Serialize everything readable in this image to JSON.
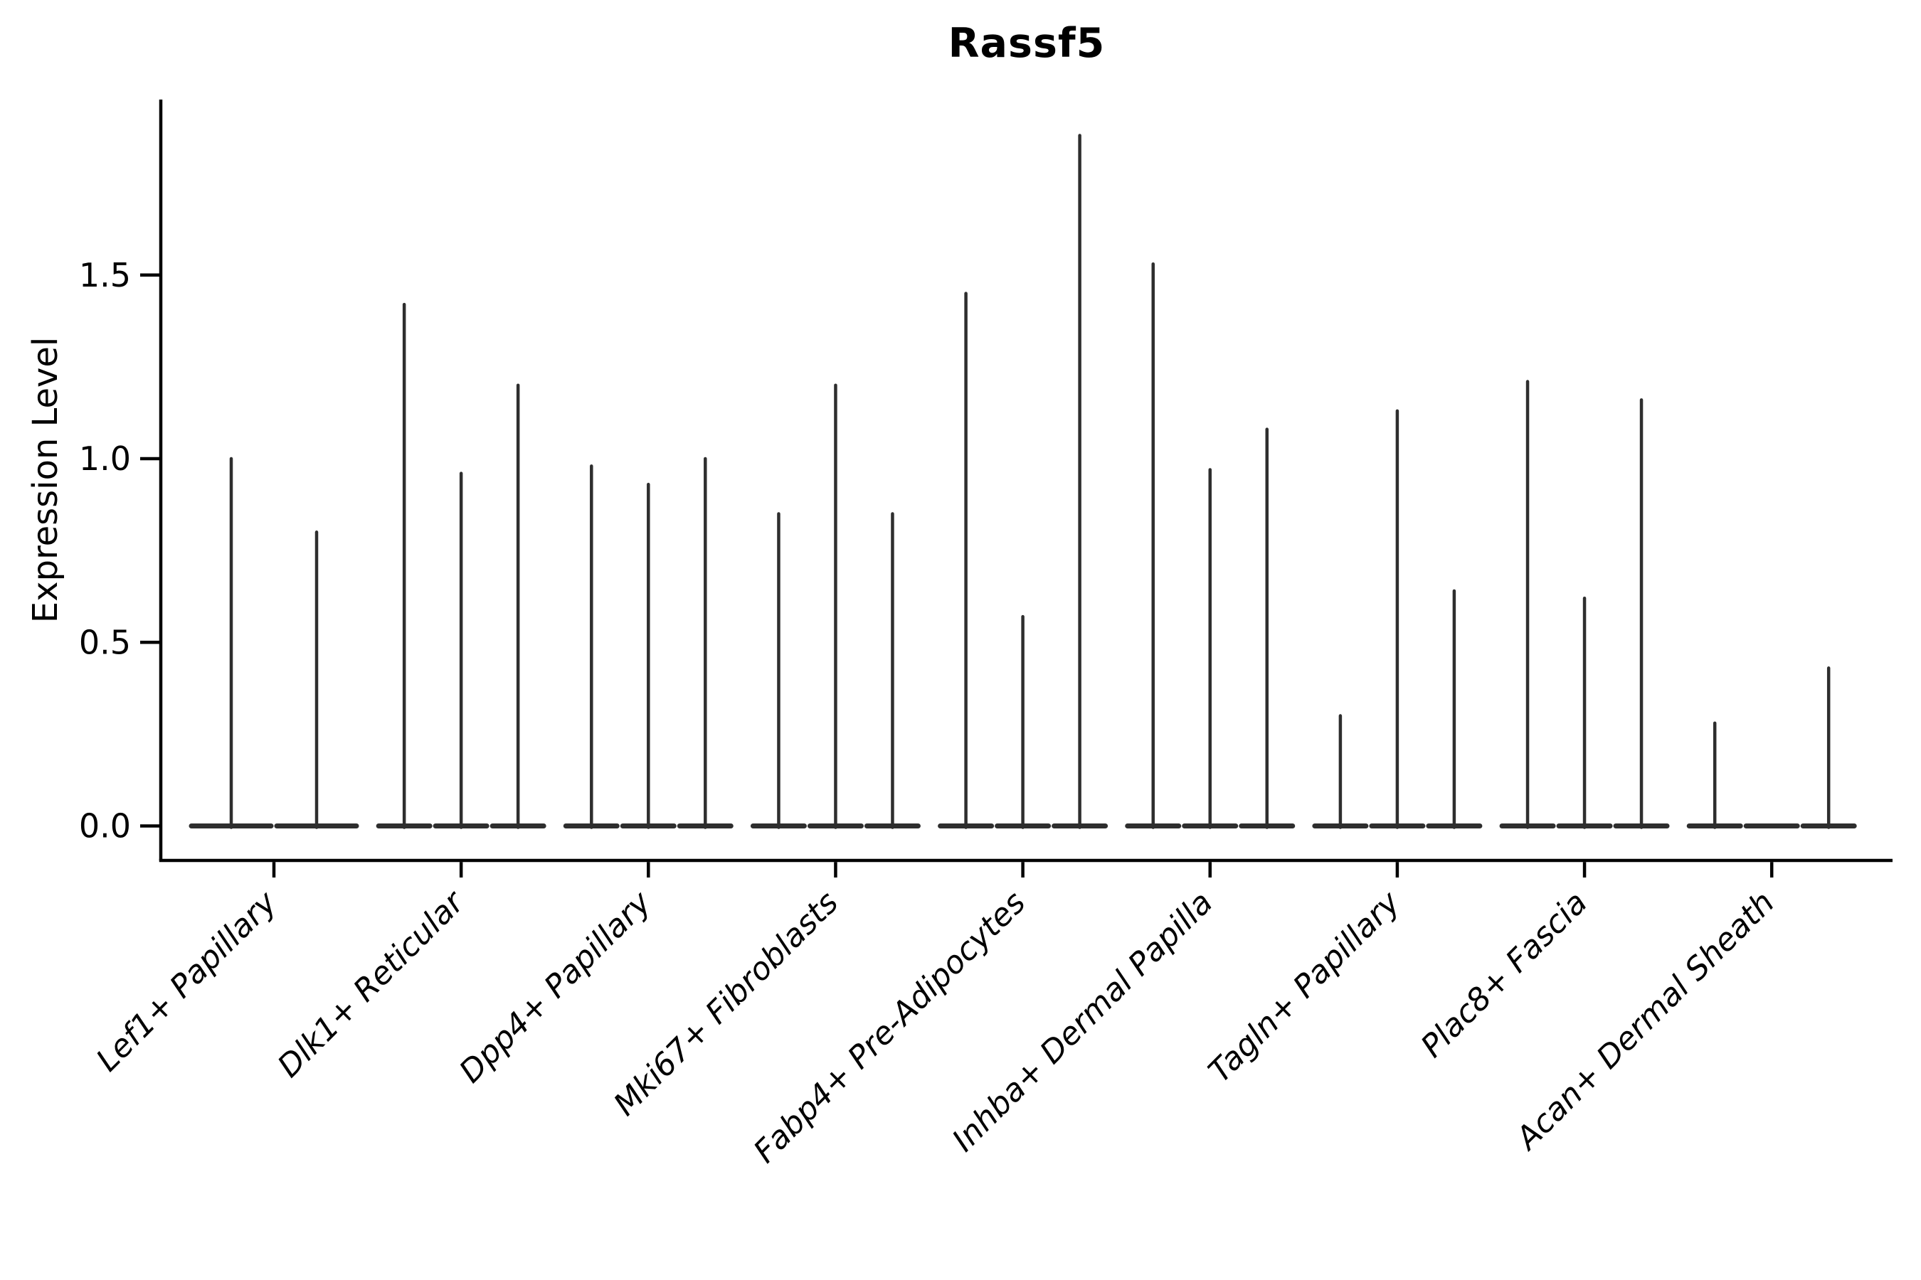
{
  "chart_data": {
    "type": "violin",
    "title": "Rassf5",
    "ylabel": "Expression Level",
    "xlabel": "",
    "grid": false,
    "legend": false,
    "x_label_rotation_deg": 45,
    "x_label_style": "italic",
    "y_ticks": [
      "0.0",
      "0.5",
      "1.0",
      "1.5"
    ],
    "y_tick_values": [
      0,
      0.5,
      1,
      1.5
    ],
    "ylim": [
      0,
      1.98
    ],
    "violin_color": "#2e2e2e",
    "axis_color": "#000000",
    "categories": [
      "Lef1+ Papillary",
      "Dlk1+ Reticular",
      "Dpp4+ Papillary",
      "Mki67+ Fibroblasts",
      "Fabp4+ Pre-Adipocytes",
      "Inhba+ Dermal Papilla",
      "Tagln+ Papillary",
      "Plac8+ Fascia",
      "Acan+ Dermal Sheath"
    ],
    "series": [
      {
        "category": "Lef1+ Papillary",
        "values": [
          1.0,
          0.8
        ]
      },
      {
        "category": "Dlk1+ Reticular",
        "values": [
          1.42,
          0.96,
          1.2
        ]
      },
      {
        "category": "Dpp4+ Papillary",
        "values": [
          0.98,
          0.93,
          1.0
        ]
      },
      {
        "category": "Mki67+ Fibroblasts",
        "values": [
          0.85,
          1.2,
          0.85
        ]
      },
      {
        "category": "Fabp4+ Pre-Adipocytes",
        "values": [
          1.45,
          0.57,
          1.88
        ]
      },
      {
        "category": "Inhba+ Dermal Papilla",
        "values": [
          1.53,
          0.97,
          1.08
        ]
      },
      {
        "category": "Tagln+ Papillary",
        "values": [
          0.3,
          1.13,
          0.64
        ]
      },
      {
        "category": "Plac8+ Fascia",
        "values": [
          1.21,
          0.62,
          1.16
        ]
      },
      {
        "category": "Acan+ Dermal Sheath",
        "values": [
          0.28,
          0.0,
          0.43
        ]
      }
    ]
  }
}
